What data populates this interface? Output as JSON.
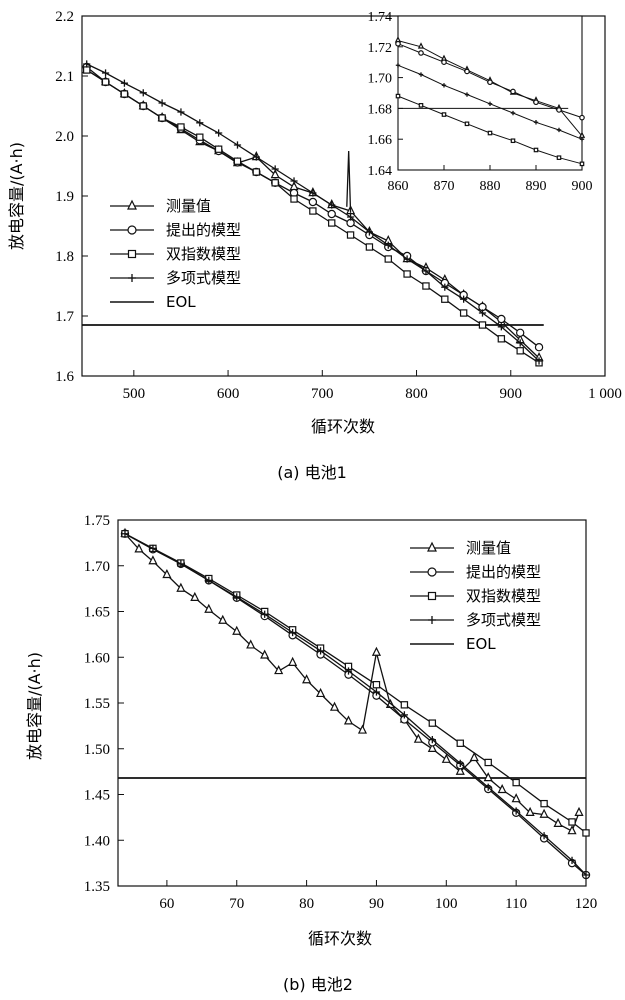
{
  "chart_data": [
    {
      "type": "line",
      "xlabel": "循环次数",
      "ylabel": "放电容量/(A·h)",
      "caption": "(a) 电池1",
      "xlim": [
        445,
        1000
      ],
      "ylim": [
        1.6,
        2.2
      ],
      "xticks": [
        "500",
        "600",
        "700",
        "800",
        "900",
        "1 000"
      ],
      "yticks": [
        "1.6",
        "1.7",
        "1.8",
        "1.9",
        "2.0",
        "2.1",
        "2.2"
      ],
      "eol": {
        "name": "EOL",
        "value": 1.685,
        "x_range": [
          445,
          935
        ]
      },
      "series": [
        {
          "name": "测量值",
          "marker": "triangle",
          "x": [
            450,
            470,
            490,
            510,
            530,
            550,
            570,
            590,
            610,
            630,
            650,
            670,
            690,
            710,
            730,
            750,
            770,
            790,
            810,
            830,
            850,
            870,
            890,
            910,
            930
          ],
          "y": [
            2.11,
            2.09,
            2.07,
            2.05,
            2.03,
            2.01,
            1.99,
            1.975,
            1.955,
            1.965,
            1.935,
            1.915,
            1.905,
            1.885,
            1.875,
            1.84,
            1.825,
            1.795,
            1.78,
            1.76,
            1.735,
            1.715,
            1.69,
            1.66,
            1.63
          ]
        },
        {
          "name": "提出的模型",
          "marker": "circle",
          "x": [
            450,
            470,
            490,
            510,
            530,
            550,
            570,
            590,
            610,
            630,
            650,
            670,
            690,
            710,
            730,
            750,
            770,
            790,
            810,
            830,
            850,
            870,
            890,
            910,
            930
          ],
          "y": [
            2.115,
            2.09,
            2.07,
            2.05,
            2.03,
            2.012,
            1.993,
            1.975,
            1.956,
            1.94,
            1.922,
            1.905,
            1.89,
            1.87,
            1.855,
            1.835,
            1.815,
            1.8,
            1.775,
            1.755,
            1.735,
            1.715,
            1.695,
            1.672,
            1.648
          ]
        },
        {
          "name": "双指数模型",
          "marker": "square",
          "x": [
            450,
            470,
            490,
            510,
            530,
            550,
            570,
            590,
            610,
            630,
            650,
            670,
            690,
            710,
            730,
            750,
            770,
            790,
            810,
            830,
            850,
            870,
            890,
            910,
            930
          ],
          "y": [
            2.11,
            2.09,
            2.07,
            2.05,
            2.03,
            2.015,
            1.998,
            1.978,
            1.958,
            1.94,
            1.922,
            1.895,
            1.875,
            1.855,
            1.835,
            1.815,
            1.795,
            1.77,
            1.75,
            1.728,
            1.705,
            1.685,
            1.662,
            1.642,
            1.622
          ]
        },
        {
          "name": "多项式模型",
          "marker": "plus",
          "x": [
            450,
            470,
            490,
            510,
            530,
            550,
            570,
            590,
            610,
            630,
            650,
            670,
            690,
            710,
            730,
            750,
            770,
            790,
            810,
            830,
            850,
            870,
            890,
            910,
            930
          ],
          "y": [
            2.12,
            2.105,
            2.088,
            2.072,
            2.055,
            2.04,
            2.022,
            2.005,
            1.985,
            1.965,
            1.945,
            1.925,
            1.905,
            1.885,
            1.865,
            1.84,
            1.818,
            1.795,
            1.775,
            1.748,
            1.728,
            1.705,
            1.682,
            1.655,
            1.625
          ]
        }
      ],
      "inset": {
        "xlim": [
          860,
          900
        ],
        "ylim": [
          1.64,
          1.74
        ],
        "xticks": [
          "860",
          "870",
          "880",
          "890",
          "900"
        ],
        "yticks": [
          "1.64",
          "1.66",
          "1.68",
          "1.70",
          "1.72",
          "1.74"
        ]
      }
    },
    {
      "type": "line",
      "xlabel": "循环次数",
      "ylabel": "放电容量/(A·h)",
      "caption": "(b) 电池2",
      "xlim": [
        53,
        120
      ],
      "ylim": [
        1.35,
        1.75
      ],
      "xticks": [
        "60",
        "70",
        "80",
        "90",
        "100",
        "110",
        "120"
      ],
      "yticks": [
        "1.35",
        "1.40",
        "1.45",
        "1.50",
        "1.55",
        "1.60",
        "1.65",
        "1.70",
        "1.75"
      ],
      "eol": {
        "name": "EOL",
        "value": 1.468,
        "x_range": [
          53,
          120
        ]
      },
      "series": [
        {
          "name": "测量值",
          "marker": "triangle",
          "x": [
            54,
            56,
            58,
            60,
            62,
            64,
            66,
            68,
            70,
            72,
            74,
            76,
            78,
            80,
            82,
            84,
            86,
            88,
            90,
            92,
            94,
            96,
            98,
            100,
            102,
            104,
            106,
            108,
            110,
            112,
            114,
            116,
            118,
            119
          ],
          "y": [
            1.735,
            1.718,
            1.705,
            1.69,
            1.675,
            1.665,
            1.652,
            1.64,
            1.628,
            1.613,
            1.602,
            1.585,
            1.594,
            1.575,
            1.56,
            1.545,
            1.53,
            1.52,
            1.605,
            1.548,
            1.532,
            1.51,
            1.5,
            1.488,
            1.475,
            1.49,
            1.468,
            1.455,
            1.445,
            1.43,
            1.428,
            1.418,
            1.41,
            1.43
          ]
        },
        {
          "name": "提出的模型",
          "marker": "circle",
          "x": [
            54,
            58,
            62,
            66,
            70,
            74,
            78,
            82,
            86,
            90,
            94,
            98,
            102,
            106,
            110,
            114,
            118,
            120
          ],
          "y": [
            1.735,
            1.718,
            1.702,
            1.684,
            1.665,
            1.645,
            1.624,
            1.603,
            1.581,
            1.558,
            1.532,
            1.507,
            1.482,
            1.456,
            1.43,
            1.402,
            1.375,
            1.362
          ]
        },
        {
          "name": "双指数模型",
          "marker": "square",
          "x": [
            54,
            58,
            62,
            66,
            70,
            74,
            78,
            82,
            86,
            90,
            94,
            98,
            102,
            106,
            110,
            114,
            118,
            120
          ],
          "y": [
            1.735,
            1.719,
            1.703,
            1.686,
            1.668,
            1.65,
            1.63,
            1.61,
            1.59,
            1.57,
            1.548,
            1.528,
            1.506,
            1.485,
            1.463,
            1.44,
            1.42,
            1.408
          ]
        },
        {
          "name": "多项式模型",
          "marker": "plus",
          "x": [
            54,
            58,
            62,
            66,
            70,
            74,
            78,
            82,
            86,
            90,
            94,
            98,
            102,
            106,
            110,
            114,
            118,
            120
          ],
          "y": [
            1.735,
            1.719,
            1.702,
            1.684,
            1.666,
            1.647,
            1.627,
            1.607,
            1.585,
            1.562,
            1.537,
            1.51,
            1.484,
            1.458,
            1.432,
            1.405,
            1.378,
            1.362
          ]
        }
      ]
    }
  ]
}
